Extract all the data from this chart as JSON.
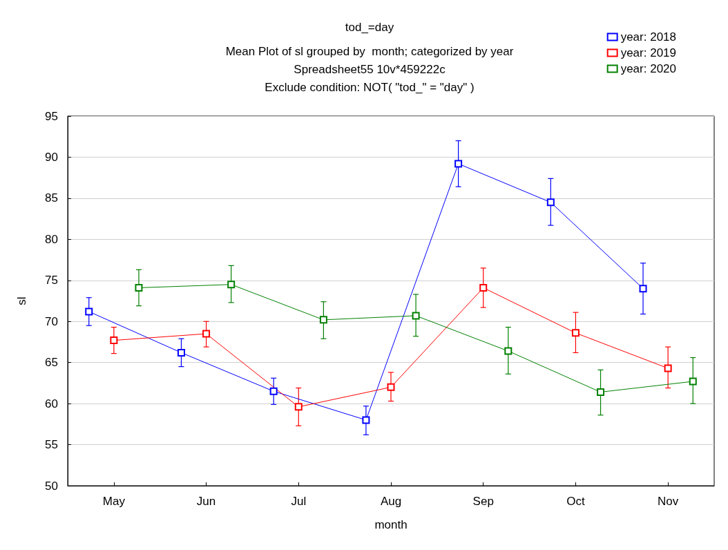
{
  "chart_data": {
    "type": "line",
    "title": "tod_=day",
    "subtitle": "Mean Plot of sl grouped by  month; categorized by year\nSpreadsheet55 10v*459222c\nExclude condition: NOT( \"tod_\" = \"day\" )",
    "xlabel": "month",
    "ylabel": "sl",
    "categories": [
      "May",
      "Jun",
      "Jul",
      "Aug",
      "Sep",
      "Oct",
      "Nov"
    ],
    "series": [
      {
        "name": "year: 2018",
        "color": "#0000ff",
        "values": [
          71.2,
          66.2,
          61.5,
          58.0,
          89.2,
          84.5,
          74.0
        ],
        "errors": [
          [
            69.5,
            72.9
          ],
          [
            64.5,
            67.9
          ],
          [
            59.9,
            63.1
          ],
          [
            56.2,
            59.7
          ],
          [
            86.4,
            92.0
          ],
          [
            81.7,
            87.4
          ],
          [
            70.9,
            77.1
          ]
        ]
      },
      {
        "name": "year: 2019",
        "color": "#ff0000",
        "values": [
          67.7,
          68.5,
          59.6,
          62.0,
          74.1,
          68.6,
          64.3
        ],
        "errors": [
          [
            66.1,
            69.3
          ],
          [
            66.9,
            70.0
          ],
          [
            57.3,
            61.9
          ],
          [
            60.3,
            63.8
          ],
          [
            71.7,
            76.5
          ],
          [
            66.2,
            71.1
          ],
          [
            61.9,
            66.9
          ]
        ]
      },
      {
        "name": "year: 2020",
        "color": "#008000",
        "values": [
          74.1,
          74.5,
          70.2,
          70.7,
          66.4,
          61.4,
          62.7
        ],
        "errors": [
          [
            71.9,
            76.3
          ],
          [
            72.3,
            76.8
          ],
          [
            67.9,
            72.4
          ],
          [
            68.2,
            73.3
          ],
          [
            63.6,
            69.3
          ],
          [
            58.6,
            64.1
          ],
          [
            60.0,
            65.6
          ]
        ]
      }
    ],
    "ylim": [
      50,
      95
    ],
    "yticks": [
      50,
      55,
      60,
      65,
      70,
      75,
      80,
      85,
      90,
      95
    ],
    "grid": "y",
    "legend": "top right",
    "marker": "square",
    "line_style": "solid"
  }
}
